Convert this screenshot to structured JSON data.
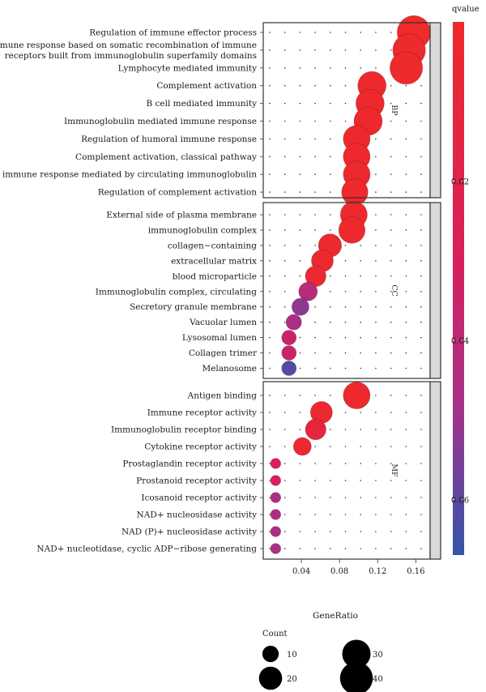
{
  "chart_data": {
    "type": "scatter",
    "xlabel": "GeneRatio",
    "x_ticks": [
      "0.04",
      "0.08",
      "0.12",
      "0.16"
    ],
    "x_tick_values": [
      0.04,
      0.08,
      0.12,
      0.16
    ],
    "xlim": [
      0.0,
      0.175
    ],
    "color_legend": {
      "title": "qvalue",
      "ticks": [
        "0.02",
        "0.04",
        "0.06"
      ],
      "tick_values": [
        0.02,
        0.04,
        0.06
      ],
      "range": [
        0.0,
        0.067
      ],
      "low_color": "#ee2a2a",
      "mid_color": "#c2207a",
      "high_color": "#3355aa"
    },
    "size_legend": {
      "title": "Count",
      "entries": [
        {
          "label": "10",
          "value": 10
        },
        {
          "label": "30",
          "value": 30
        },
        {
          "label": "20",
          "value": 20
        },
        {
          "label": "40",
          "value": 40
        }
      ]
    },
    "panels": [
      {
        "strip": "BP",
        "terms": [
          {
            "label": "Regulation of immune effector process",
            "x": 0.158,
            "q": 0.001,
            "count": 42
          },
          {
            "label": "Adaptive immune response based on somatic recombination of immune|receptors built from immunoglobulin superfamily domains",
            "x": 0.153,
            "q": 0.001,
            "count": 40
          },
          {
            "label": "Lymphocyte mediated immunity",
            "x": 0.15,
            "q": 0.001,
            "count": 40
          },
          {
            "label": "Complement activation",
            "x": 0.114,
            "q": 0.002,
            "count": 30
          },
          {
            "label": "B cell mediated immunity",
            "x": 0.112,
            "q": 0.002,
            "count": 30
          },
          {
            "label": "Immunoglobulin mediated immune response",
            "x": 0.11,
            "q": 0.002,
            "count": 30
          },
          {
            "label": "Regulation of humoral immune response",
            "x": 0.098,
            "q": 0.002,
            "count": 27
          },
          {
            "label": "Complement activation, classical pathway",
            "x": 0.098,
            "q": 0.002,
            "count": 27
          },
          {
            "label": "Humoral immune response mediated by circulating immunoglobulin",
            "x": 0.098,
            "q": 0.002,
            "count": 27
          },
          {
            "label": "Regulation of complement activation",
            "x": 0.096,
            "q": 0.002,
            "count": 26
          }
        ]
      },
      {
        "strip": "CC",
        "terms": [
          {
            "label": "External side of plasma membrane",
            "x": 0.095,
            "q": 0.002,
            "count": 27
          },
          {
            "label": "immunoglobulin complex",
            "x": 0.093,
            "q": 0.002,
            "count": 26
          },
          {
            "label": "collagen−containing",
            "x": 0.07,
            "q": 0.003,
            "count": 20
          },
          {
            "label": "extracellular matrix",
            "x": 0.062,
            "q": 0.003,
            "count": 18
          },
          {
            "label": "blood microparticle",
            "x": 0.055,
            "q": 0.004,
            "count": 16
          },
          {
            "label": "Immunoglobulin complex, circulating",
            "x": 0.047,
            "q": 0.042,
            "count": 13
          },
          {
            "label": "Secretory granule membrane",
            "x": 0.039,
            "q": 0.052,
            "count": 11
          },
          {
            "label": "Vacuolar lumen",
            "x": 0.032,
            "q": 0.045,
            "count": 9
          },
          {
            "label": "Lysosomal lumen",
            "x": 0.027,
            "q": 0.035,
            "count": 8
          },
          {
            "label": "Collagen trimer",
            "x": 0.027,
            "q": 0.035,
            "count": 8
          },
          {
            "label": "Melanosome",
            "x": 0.027,
            "q": 0.062,
            "count": 8
          }
        ]
      },
      {
        "strip": "MF",
        "terms": [
          {
            "label": "Antigen binding",
            "x": 0.098,
            "q": 0.002,
            "count": 27
          },
          {
            "label": "Immune receptor activity",
            "x": 0.061,
            "q": 0.003,
            "count": 18
          },
          {
            "label": "Immunoglobulin receptor binding",
            "x": 0.055,
            "q": 0.012,
            "count": 16
          },
          {
            "label": "Cytokine receptor activity",
            "x": 0.041,
            "q": 0.004,
            "count": 12
          },
          {
            "label": "Prostaglandin receptor activity",
            "x": 0.013,
            "q": 0.028,
            "count": 4
          },
          {
            "label": "Prostanoid receptor activity",
            "x": 0.013,
            "q": 0.028,
            "count": 4
          },
          {
            "label": "Icosanoid receptor activity",
            "x": 0.013,
            "q": 0.046,
            "count": 4
          },
          {
            "label": "NAD+ nucleosidase activity",
            "x": 0.013,
            "q": 0.046,
            "count": 4
          },
          {
            "label": "NAD (P)+ nucleosidase activity",
            "x": 0.013,
            "q": 0.046,
            "count": 4
          },
          {
            "label": "NAD+ nucleotidase, cyclic ADP−ribose generating",
            "x": 0.013,
            "q": 0.046,
            "count": 4
          }
        ]
      }
    ]
  }
}
